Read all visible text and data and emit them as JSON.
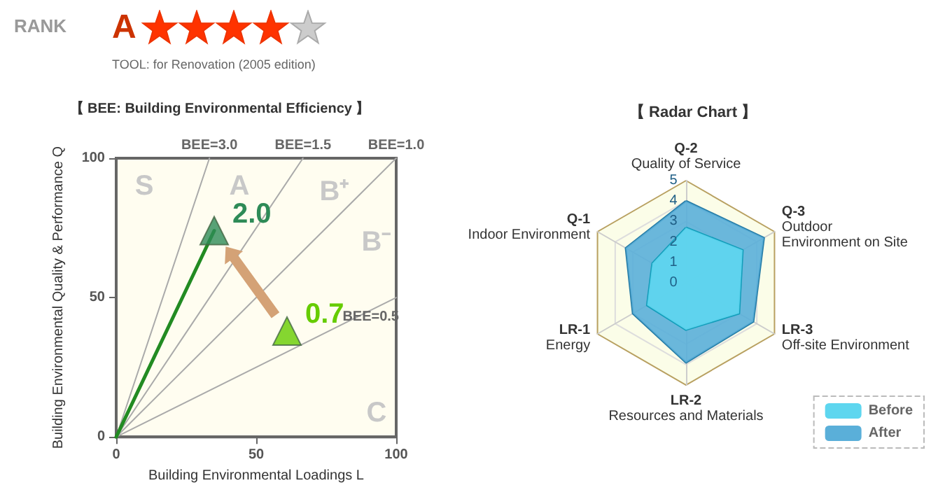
{
  "chart_data": [
    {
      "type": "scatter",
      "title": "【 BEE: Building Environmental Efficiency 】",
      "xlabel": "Building Environmental Loadings L",
      "ylabel": "Building Environmental Quality & Performance Q",
      "xlim": [
        0,
        100
      ],
      "ylim": [
        0,
        100
      ],
      "xticks": [
        0,
        50,
        100
      ],
      "yticks": [
        0,
        50,
        100
      ],
      "grid": false,
      "annotations": [
        "RANK",
        "A",
        "TOOL: for Renovation (2005 edition)",
        "S",
        "A",
        "B⁺",
        "B⁻",
        "C",
        {
          "text": "2.0",
          "x": 35,
          "y": 74
        },
        {
          "text": "0.7",
          "x": 61,
          "y": 38
        }
      ],
      "series": [
        {
          "type": "line",
          "name": "BEE=3.0",
          "color": "#aaaaaa",
          "x": [
            0,
            33.3
          ],
          "values": [
            0,
            100
          ]
        },
        {
          "type": "line",
          "name": "BEE=1.5",
          "color": "#aaaaaa",
          "x": [
            0,
            66.7
          ],
          "values": [
            0,
            100
          ]
        },
        {
          "type": "line",
          "name": "BEE=1.0",
          "color": "#aaaaaa",
          "x": [
            0,
            100
          ],
          "values": [
            0,
            100
          ]
        },
        {
          "type": "line",
          "name": "BEE=0.5",
          "color": "#aaaaaa",
          "x": [
            0,
            100
          ],
          "values": [
            0,
            50
          ]
        },
        {
          "type": "line",
          "color": "#228b22",
          "x": [
            0,
            35
          ],
          "values": [
            0,
            74
          ]
        },
        {
          "type": "scatter",
          "x": [
            35,
            61
          ],
          "values": [
            74,
            38
          ],
          "colors": [
            "#2e8b57",
            "#66cc00"
          ],
          "marker": "triangle"
        }
      ]
    },
    {
      "type": "radar",
      "title": "【 Radar Chart 】",
      "categories": [
        "Q-2\nQuality of Service",
        "Q-3\nOutdoor\nEnvironment on Site",
        "LR-3\nOff-site Environment",
        "LR-2\nResources and Materials",
        "LR-1\nEnergy",
        "Q-1\nIndoor Environment"
      ],
      "ylim": [
        0,
        5
      ],
      "yticks": [
        0,
        1,
        2,
        3,
        4,
        5
      ],
      "legend": "bottom right",
      "series": [
        {
          "name": "Before",
          "color": "#5ed6ef",
          "values": [
            2.7,
            3.2,
            3.0,
            2.3,
            2.2,
            1.9
          ]
        },
        {
          "name": "After",
          "color": "#5aafd9",
          "values": [
            4.0,
            4.4,
            3.8,
            3.9,
            3.0,
            3.4
          ]
        }
      ]
    }
  ]
}
